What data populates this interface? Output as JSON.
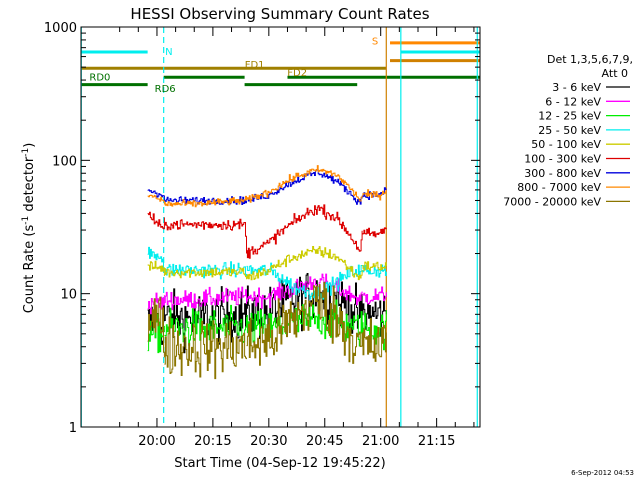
{
  "chart_data": {
    "type": "line",
    "title": "HESSI Observing Summary Count Rates",
    "xlabel": "Start Time (04-Sep-12 19:45:22)",
    "ylabel_main": "Count Rate (s",
    "ylabel_sup1": "-1",
    "ylabel_mid": " detector",
    "ylabel_sup2": "-1",
    "ylabel_end": ")",
    "timestamp": "6-Sep-2012 04:53",
    "yscale": "log",
    "ylim": [
      1,
      1000
    ],
    "xlim_minutes": [
      -5.37,
      101.63
    ],
    "x_ticks": [
      {
        "m": 15,
        "label": "20:00"
      },
      {
        "m": 30,
        "label": "20:15"
      },
      {
        "m": 45,
        "label": "20:30"
      },
      {
        "m": 60,
        "label": "20:45"
      },
      {
        "m": 75,
        "label": "21:00"
      },
      {
        "m": 90,
        "label": "21:15"
      }
    ],
    "y_ticks": [
      {
        "v": 1,
        "label": "1"
      },
      {
        "v": 10,
        "label": "10"
      },
      {
        "v": 100,
        "label": "100"
      },
      {
        "v": 1000,
        "label": "1000"
      }
    ],
    "legend_header": [
      "Det 1,3,5,6,7,9,",
      "Att 0"
    ],
    "legend_entries": [
      {
        "label": "3 - 6 keV",
        "color": "#000000"
      },
      {
        "label": "6 - 12 keV",
        "color": "#ff00ff"
      },
      {
        "label": "12 - 25 keV",
        "color": "#00ee00"
      },
      {
        "label": "25 - 50 keV",
        "color": "#00eeee"
      },
      {
        "label": "50 - 100 keV",
        "color": "#cccc00"
      },
      {
        "label": "100 - 300 keV",
        "color": "#dd0000"
      },
      {
        "label": "300 - 800 keV",
        "color": "#0000dd"
      },
      {
        "label": "800 - 7000 keV",
        "color": "#ff8800"
      },
      {
        "label": "7000 - 20000 keV",
        "color": "#8b7500"
      }
    ],
    "gap_intervals": [
      [
        -5.37,
        12.5
      ],
      [
        76.5,
        101.63
      ]
    ],
    "vertical_lines": [
      {
        "m": -5.3,
        "color": "#00eeee"
      },
      {
        "m": 16.8,
        "color": "#00eeee",
        "dashed": true
      },
      {
        "m": 76.5,
        "color": "#d08000"
      },
      {
        "m": 80.4,
        "color": "#00eeee"
      },
      {
        "m": 100.9,
        "color": "#00eeee"
      }
    ],
    "flags": [
      {
        "name": "N",
        "color": "#00eeee",
        "value": 650,
        "segments": [
          [
            -5.37,
            12.5
          ]
        ],
        "label_m": 18.2,
        "label_v": 660
      },
      {
        "name": "S",
        "color": "#ff8800",
        "value": 760,
        "segments": [
          [
            77.5,
            101.63
          ]
        ],
        "label_m": 73.5,
        "label_v": 790
      },
      {
        "name": "",
        "color": "#00eeee",
        "value": 650,
        "segments": [
          [
            80.4,
            101.63
          ]
        ]
      },
      {
        "name": "",
        "color": "#d08000",
        "value": 560,
        "segments": [
          [
            77.5,
            101.63
          ]
        ]
      },
      {
        "name": "FD1",
        "color": "#a08000",
        "value": 490,
        "segments": [
          [
            -5.37,
            76.5
          ]
        ],
        "label_m": 41.2,
        "label_v": 530
      },
      {
        "name": "FD2",
        "color": "#a08000",
        "value": 480,
        "segments": [],
        "label_m": 52.6,
        "label_v": 460
      },
      {
        "name": "RD0",
        "color": "#007000",
        "value": 420,
        "segments": [
          [
            16.8,
            38.5
          ],
          [
            50.0,
            101.63
          ]
        ],
        "label_m": -0.3,
        "label_v": 425
      },
      {
        "name": "RD6",
        "color": "#007000",
        "value": 370,
        "segments": [
          [
            -5.37,
            12.5
          ],
          [
            38.5,
            68.7
          ]
        ],
        "label_m": 17.2,
        "label_v": 350
      }
    ],
    "series_shapes": {
      "segments": [
        [
          12.5,
          17
        ],
        [
          17,
          39
        ],
        [
          39,
          70
        ],
        [
          70,
          76.5
        ]
      ],
      "x": [
        12.5,
        16.5,
        17,
        25,
        38.5,
        39,
        45,
        52,
        58,
        63,
        68,
        69.5,
        70,
        73,
        75,
        76.5
      ]
    },
    "series": [
      {
        "name": "3 - 6 keV",
        "color": "#000000",
        "noise": 0.14,
        "values": [
          6,
          6,
          6.5,
          6.5,
          7,
          7,
          7.2,
          9,
          10,
          9,
          7,
          6.5,
          7,
          7,
          7,
          7
        ]
      },
      {
        "name": "6 - 12 keV",
        "color": "#ff00ff",
        "noise": 0.05,
        "values": [
          8.5,
          8.5,
          9,
          9,
          9.5,
          9.5,
          9.5,
          11,
          12.5,
          11,
          9.5,
          9,
          9.5,
          9.5,
          9.5,
          10
        ]
      },
      {
        "name": "12 - 25 keV",
        "color": "#00ee00",
        "noise": 0.1,
        "values": [
          5,
          5,
          5.5,
          5.5,
          5.5,
          5.5,
          5.5,
          6,
          6.5,
          6,
          5.5,
          5.5,
          5.5,
          5.5,
          5.5,
          5.5
        ]
      },
      {
        "name": "25 - 50 keV",
        "color": "#00eeee",
        "noise": 0.04,
        "values": [
          20,
          19,
          15,
          15,
          15,
          15,
          15,
          11,
          10,
          12,
          15,
          15,
          15,
          15,
          15,
          15
        ]
      },
      {
        "name": "50 - 100 keV",
        "color": "#cccc00",
        "noise": 0.03,
        "values": [
          16,
          15.5,
          14.5,
          14.5,
          14.5,
          13,
          15,
          19,
          21,
          19,
          14,
          13,
          16,
          16,
          16,
          16
        ]
      },
      {
        "name": "100 - 300 keV",
        "color": "#dd0000",
        "noise": 0.03,
        "values": [
          40,
          30,
          33,
          33,
          33,
          20,
          24,
          35,
          44,
          37,
          24,
          21,
          28,
          28,
          28,
          32
        ]
      },
      {
        "name": "300 - 800 keV",
        "color": "#0000dd",
        "noise": 0.02,
        "values": [
          60,
          55,
          50,
          50,
          50,
          50,
          55,
          70,
          82,
          70,
          52,
          48,
          55,
          55,
          55,
          60
        ]
      },
      {
        "name": "800 - 7000 keV",
        "color": "#ff8800",
        "noise": 0.02,
        "values": [
          55,
          50,
          47,
          47,
          50,
          50,
          58,
          75,
          85,
          78,
          56,
          50,
          55,
          55,
          55,
          60
        ]
      },
      {
        "name": "7000 - 20000 keV",
        "color": "#8b7500",
        "noise": 0.16,
        "values": [
          7,
          6,
          4,
          4,
          4,
          4,
          4.5,
          6.5,
          9,
          6.5,
          4.5,
          4,
          4,
          4,
          4,
          4
        ]
      }
    ]
  }
}
